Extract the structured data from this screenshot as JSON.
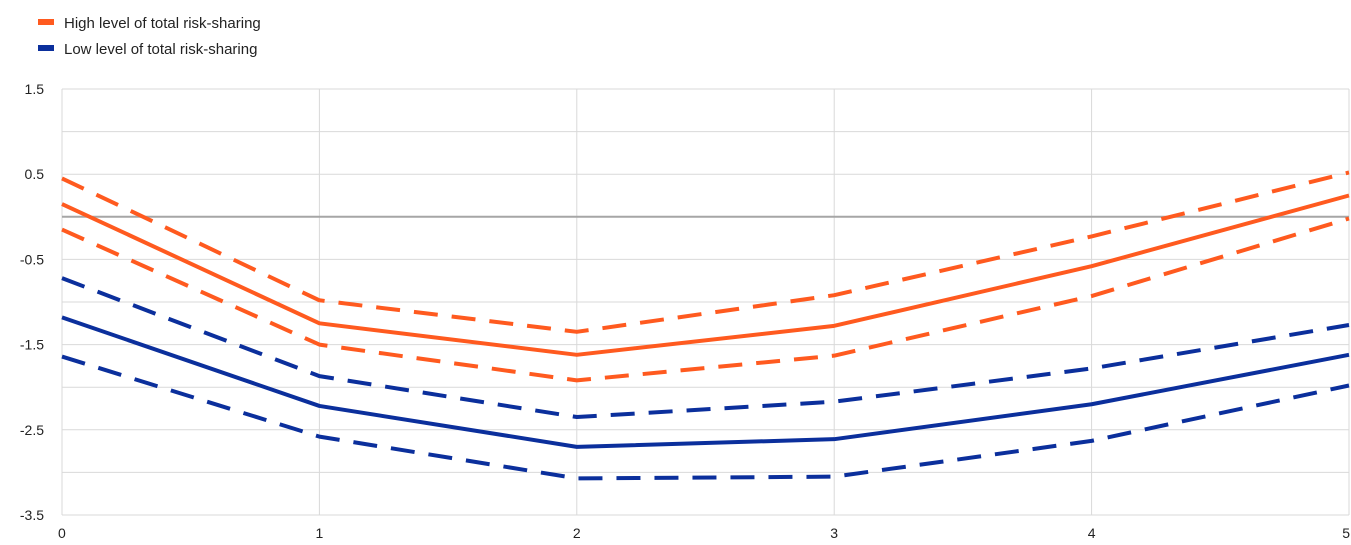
{
  "chart_data": {
    "type": "line",
    "x": [
      0,
      1,
      2,
      3,
      4,
      5
    ],
    "xlim": [
      0,
      5
    ],
    "ylim": [
      -3.5,
      1.5
    ],
    "y_ticks": [
      1.5,
      0.5,
      -0.5,
      -1.5,
      -2.5,
      -3.5
    ],
    "y_tick_labels": [
      "1.5",
      "0.5",
      "-0.5",
      "-1.5",
      "-2.5",
      "-3.5"
    ],
    "x_tick_labels": [
      "0",
      "1",
      "2",
      "3",
      "4",
      "5"
    ],
    "grid": "vertical and horizontal",
    "zero_line": true,
    "legend": {
      "placement": "top-left",
      "entries": [
        {
          "label": "High level of total risk-sharing",
          "color": "#ff5a1f"
        },
        {
          "label": "Low level of total risk-sharing",
          "color": "#0b2f9c"
        }
      ]
    },
    "series": [
      {
        "group": "high",
        "style": "solid",
        "color": "#ff5a1f",
        "values": [
          0.15,
          -1.25,
          -1.62,
          -1.28,
          -0.58,
          0.25
        ]
      },
      {
        "group": "high",
        "style": "dashed",
        "color": "#ff5a1f",
        "values": [
          0.45,
          -0.98,
          -1.35,
          -0.92,
          -0.23,
          0.52
        ]
      },
      {
        "group": "high",
        "style": "dashed",
        "color": "#ff5a1f",
        "values": [
          -0.15,
          -1.5,
          -1.92,
          -1.63,
          -0.93,
          -0.02
        ]
      },
      {
        "group": "low",
        "style": "solid",
        "color": "#0b2f9c",
        "values": [
          -1.18,
          -2.22,
          -2.7,
          -2.61,
          -2.2,
          -1.62
        ]
      },
      {
        "group": "low",
        "style": "dashed",
        "color": "#0b2f9c",
        "values": [
          -0.72,
          -1.87,
          -2.35,
          -2.17,
          -1.78,
          -1.27
        ]
      },
      {
        "group": "low",
        "style": "dashed",
        "color": "#0b2f9c",
        "values": [
          -1.64,
          -2.58,
          -3.07,
          -3.05,
          -2.63,
          -1.98
        ]
      }
    ]
  }
}
